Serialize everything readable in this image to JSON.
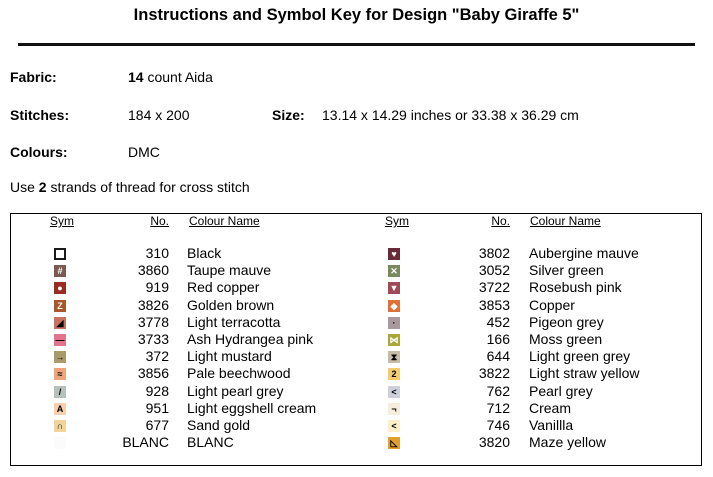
{
  "title": "Instructions and Symbol Key for Design \"Baby Giraffe 5\"",
  "fabric": {
    "label": "Fabric:",
    "count": "14",
    "rest": " count Aida"
  },
  "stitches": {
    "label": "Stitches:",
    "value": "184 x 200"
  },
  "size": {
    "label": "Size:",
    "value": "13.14 x 14.29 inches or 33.38 x 36.29 cm"
  },
  "colours": {
    "label": "Colours:",
    "value": "DMC"
  },
  "strands": {
    "pre": "Use ",
    "count": "2",
    "post": " strands of thread for cross stitch"
  },
  "table": {
    "headers": {
      "sym": "Sym",
      "no": "No.",
      "name": "Colour Name"
    },
    "left": [
      {
        "no": "310",
        "name": "Black",
        "color": "#ffffff",
        "border": "#1a1a1a",
        "glyph": "",
        "glyph_color": "#fff"
      },
      {
        "no": "3860",
        "name": "Taupe mauve",
        "color": "#7b5a52",
        "glyph": "#",
        "glyph_color": "#fff"
      },
      {
        "no": "919",
        "name": "Red copper",
        "color": "#9a2c22",
        "glyph": "●",
        "glyph_color": "#fff"
      },
      {
        "no": "3826",
        "name": "Golden brown",
        "color": "#a8572a",
        "glyph": "Z",
        "glyph_color": "#fff"
      },
      {
        "no": "3778",
        "name": "Light terracotta",
        "color": "#c7725f",
        "glyph": "◢",
        "glyph_color": "#000"
      },
      {
        "no": "3733",
        "name": "Ash Hydrangea pink",
        "color": "#e0748c",
        "glyph": "—",
        "glyph_color": "#000"
      },
      {
        "no": "372",
        "name": "Light mustard",
        "color": "#a89a6a",
        "glyph": "→",
        "glyph_color": "#000"
      },
      {
        "no": "3856",
        "name": "Pale beechwood",
        "color": "#eea57c",
        "glyph": "≈",
        "glyph_color": "#000"
      },
      {
        "no": "928",
        "name": "Light pearl grey",
        "color": "#b8c0bc",
        "glyph": "/",
        "glyph_color": "#000"
      },
      {
        "no": "951",
        "name": "Light eggshell cream",
        "color": "#f8cfae",
        "glyph": "A",
        "glyph_color": "#000"
      },
      {
        "no": "677",
        "name": "Sand gold",
        "color": "#f0d49c",
        "glyph": "∩",
        "glyph_color": "#000"
      },
      {
        "no": "BLANC",
        "name": "BLANC",
        "color": "#fbfbfb",
        "glyph": "",
        "glyph_color": "#000"
      }
    ],
    "right": [
      {
        "no": "3802",
        "name": "Aubergine mauve",
        "color": "#6b2a3a",
        "glyph": "♥",
        "glyph_color": "#fff"
      },
      {
        "no": "3052",
        "name": "Silver green",
        "color": "#7a8a60",
        "glyph": "✕",
        "glyph_color": "#fff"
      },
      {
        "no": "3722",
        "name": "Rosebush pink",
        "color": "#a04a58",
        "glyph": "▼",
        "glyph_color": "#fff"
      },
      {
        "no": "3853",
        "name": "Copper",
        "color": "#e0703a",
        "glyph": "◆",
        "glyph_color": "#fff"
      },
      {
        "no": "452",
        "name": "Pigeon grey",
        "color": "#a89a9c",
        "glyph": "·",
        "glyph_color": "#000"
      },
      {
        "no": "166",
        "name": "Moss green",
        "color": "#a8a838",
        "glyph": "⋈",
        "glyph_color": "#fff"
      },
      {
        "no": "644",
        "name": "Light green grey",
        "color": "#c4bca4",
        "glyph": "⧗",
        "glyph_color": "#000"
      },
      {
        "no": "3822",
        "name": "Light straw yellow",
        "color": "#f2cc6e",
        "glyph": "2",
        "glyph_color": "#000"
      },
      {
        "no": "762",
        "name": "Pearl grey",
        "color": "#cdd0d8",
        "glyph": "<",
        "glyph_color": "#000"
      },
      {
        "no": "712",
        "name": "Cream",
        "color": "#f6eedc",
        "glyph": "¬",
        "glyph_color": "#000"
      },
      {
        "no": "746",
        "name": "Vanillla",
        "color": "#fbf0c8",
        "glyph": "<",
        "glyph_color": "#000"
      },
      {
        "no": "3820",
        "name": "Maze yellow",
        "color": "#e0a030",
        "glyph": "◺",
        "glyph_color": "#000"
      }
    ]
  }
}
